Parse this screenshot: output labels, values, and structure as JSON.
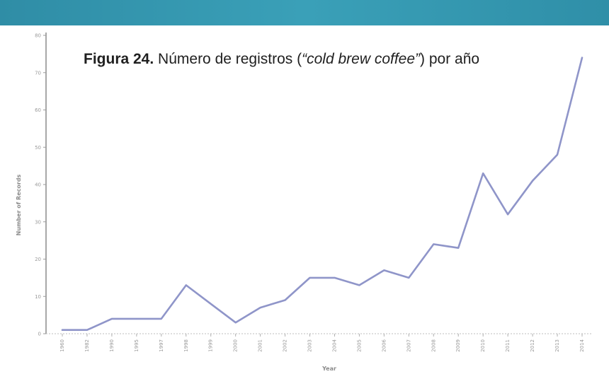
{
  "figure": {
    "label": "Figura 24.",
    "title_pre": "Número de registros (",
    "title_em": "“cold brew coffee”",
    "title_post": ") por año"
  },
  "chart_data": {
    "type": "line",
    "title": "Figura 24. Número de registros (“cold brew coffee”) por año",
    "xlabel": "Year",
    "ylabel": "Number of Records",
    "ylim": [
      0,
      80
    ],
    "yticks": [
      0,
      10,
      20,
      30,
      40,
      50,
      60,
      70,
      80
    ],
    "grid": false,
    "x": [
      "1960",
      "1982",
      "1990",
      "1995",
      "1997",
      "1998",
      "1999",
      "2000",
      "2001",
      "2002",
      "2003",
      "2004",
      "2005",
      "2006",
      "2007",
      "2008",
      "2009",
      "2010",
      "2011",
      "2012",
      "2013",
      "2014"
    ],
    "series": [
      {
        "values": [
          1,
          1,
          4,
          4,
          4,
          13,
          8,
          3,
          7,
          9,
          15,
          15,
          13,
          17,
          15,
          24,
          23,
          43,
          32,
          41,
          48,
          74
        ],
        "color": "#8f95c9"
      }
    ]
  }
}
